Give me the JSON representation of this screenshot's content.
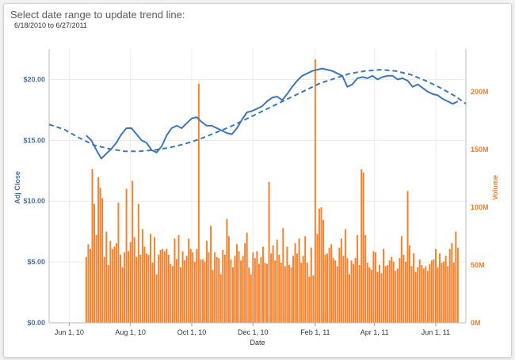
{
  "header": {
    "title": "Select date range to update trend line:",
    "range": "6/18/2010 to 6/27/2011"
  },
  "colors": {
    "price": "#3e76b6",
    "volume": "#f5822f",
    "trend": "#3e76b6",
    "grid": "#ececec"
  },
  "chart_data": {
    "type": "bar",
    "xlabel": "Date",
    "ylabel_left": "Adj Close",
    "ylabel_right": "Volume",
    "x_ticks": [
      {
        "label": "Jun 1, 10",
        "day": 0
      },
      {
        "label": "Aug 1, 10",
        "day": 61
      },
      {
        "label": "Oct 1, 10",
        "day": 122
      },
      {
        "label": "Dec 1, 10",
        "day": 183
      },
      {
        "label": "Feb 1, 11",
        "day": 245
      },
      {
        "label": "Apr 1, 11",
        "day": 304
      },
      {
        "label": "Jun 1, 11",
        "day": 365
      }
    ],
    "xlim": [
      -20,
      395
    ],
    "y_left_ticks": [
      "$0.00",
      "$5.00",
      "$10.00",
      "$15.00",
      "$20.00"
    ],
    "y_left_values": [
      0,
      5,
      10,
      15,
      20
    ],
    "y_left_lim": [
      0,
      22.5
    ],
    "y_right_ticks": [
      "0M",
      "50M",
      "100M",
      "150M",
      "200M"
    ],
    "y_right_values": [
      0,
      50,
      100,
      150,
      200
    ],
    "y_right_lim": [
      0,
      237
    ],
    "price_series": {
      "days": [
        17,
        22,
        27,
        32,
        37,
        42,
        47,
        52,
        57,
        62,
        67,
        72,
        77,
        82,
        87,
        92,
        97,
        102,
        107,
        112,
        117,
        122,
        127,
        132,
        137,
        142,
        147,
        152,
        157,
        162,
        167,
        172,
        177,
        182,
        187,
        192,
        197,
        202,
        207,
        212,
        217,
        222,
        227,
        232,
        237,
        242,
        247,
        252,
        257,
        262,
        267,
        272,
        277,
        282,
        287,
        292,
        297,
        302,
        307,
        312,
        317,
        322,
        327,
        332,
        337,
        342,
        347,
        352,
        357,
        362,
        367,
        372,
        377,
        382,
        387
      ],
      "values": [
        15.4,
        15.0,
        14.2,
        13.5,
        13.9,
        14.3,
        14.8,
        15.5,
        16.0,
        16.0,
        15.5,
        15.0,
        14.8,
        14.2,
        14.0,
        14.5,
        15.4,
        16.0,
        16.2,
        16.0,
        16.4,
        16.8,
        16.9,
        16.5,
        16.2,
        16.2,
        16.0,
        15.8,
        15.6,
        15.5,
        16.0,
        16.7,
        17.3,
        17.4,
        17.6,
        17.8,
        18.2,
        18.5,
        18.6,
        18.3,
        18.8,
        19.4,
        19.9,
        20.3,
        20.5,
        20.7,
        20.8,
        20.9,
        20.8,
        20.7,
        20.5,
        20.3,
        19.4,
        19.6,
        20.1,
        20.2,
        20.1,
        20.3,
        20.0,
        20.2,
        20.3,
        20.3,
        20.0,
        20.1,
        19.9,
        19.4,
        19.6,
        19.3,
        19.0,
        18.8,
        18.7,
        18.4,
        18.2,
        18.0,
        18.2
      ]
    },
    "trend_series": {
      "days": [
        -20,
        -5,
        10,
        25,
        40,
        55,
        70,
        85,
        100,
        115,
        130,
        145,
        160,
        175,
        190,
        205,
        220,
        235,
        250,
        265,
        280,
        295,
        310,
        325,
        340,
        355,
        370,
        385,
        395
      ],
      "values": [
        16.3,
        15.9,
        15.2,
        14.6,
        14.3,
        14.1,
        14.1,
        14.2,
        14.4,
        14.7,
        15.1,
        15.6,
        16.1,
        16.7,
        17.3,
        17.9,
        18.5,
        19.1,
        19.7,
        20.1,
        20.5,
        20.7,
        20.8,
        20.7,
        20.4,
        19.9,
        19.3,
        18.6,
        18.0
      ]
    },
    "volume_series": {
      "days": [
        17,
        19,
        21,
        23,
        25,
        27,
        29,
        31,
        33,
        35,
        37,
        39,
        41,
        43,
        45,
        47,
        49,
        51,
        53,
        55,
        57,
        59,
        61,
        63,
        65,
        67,
        69,
        71,
        73,
        75,
        77,
        79,
        81,
        83,
        85,
        87,
        89,
        91,
        93,
        95,
        97,
        99,
        101,
        103,
        105,
        107,
        109,
        111,
        113,
        115,
        117,
        119,
        121,
        123,
        125,
        127,
        129,
        131,
        133,
        135,
        137,
        139,
        141,
        143,
        145,
        147,
        149,
        151,
        153,
        155,
        157,
        159,
        161,
        163,
        165,
        167,
        169,
        171,
        173,
        175,
        177,
        179,
        181,
        183,
        185,
        187,
        189,
        191,
        193,
        195,
        197,
        199,
        201,
        203,
        205,
        207,
        209,
        211,
        213,
        215,
        217,
        219,
        221,
        223,
        225,
        227,
        229,
        231,
        233,
        235,
        237,
        239,
        241,
        243,
        245,
        247,
        249,
        251,
        253,
        255,
        257,
        259,
        261,
        263,
        265,
        267,
        269,
        271,
        273,
        275,
        277,
        279,
        281,
        283,
        285,
        287,
        289,
        291,
        293,
        295,
        297,
        299,
        301,
        303,
        305,
        307,
        309,
        311,
        313,
        315,
        317,
        319,
        321,
        323,
        325,
        327,
        329,
        331,
        333,
        335,
        337,
        339,
        341,
        343,
        345,
        347,
        349,
        351,
        353,
        355,
        357,
        359,
        361,
        363,
        365,
        367,
        369,
        371,
        373,
        375,
        377,
        379,
        381,
        383,
        385,
        387
      ],
      "values": [
        57,
        68,
        64,
        133,
        103,
        76,
        126,
        117,
        108,
        57,
        79,
        50,
        71,
        64,
        66,
        69,
        104,
        59,
        48,
        61,
        116,
        62,
        70,
        123,
        74,
        57,
        103,
        59,
        81,
        66,
        60,
        59,
        77,
        52,
        74,
        42,
        59,
        63,
        64,
        62,
        64,
        59,
        51,
        49,
        73,
        55,
        76,
        48,
        62,
        54,
        58,
        73,
        64,
        61,
        53,
        64,
        207,
        55,
        55,
        53,
        71,
        61,
        84,
        46,
        61,
        57,
        56,
        42,
        63,
        59,
        90,
        75,
        55,
        48,
        58,
        68,
        62,
        54,
        58,
        69,
        78,
        48,
        42,
        61,
        56,
        62,
        51,
        57,
        66,
        52,
        51,
        122,
        60,
        67,
        54,
        72,
        59,
        52,
        82,
        49,
        66,
        50,
        48,
        58,
        69,
        60,
        73,
        52,
        58,
        75,
        52,
        40,
        65,
        41,
        228,
        77,
        99,
        100,
        89,
        59,
        60,
        65,
        68,
        56,
        54,
        49,
        65,
        73,
        58,
        81,
        56,
        42,
        54,
        51,
        56,
        76,
        50,
        133,
        130,
        76,
        52,
        48,
        46,
        62,
        61,
        44,
        50,
        43,
        64,
        49,
        50,
        54,
        57,
        53,
        45,
        47,
        56,
        75,
        59,
        53,
        114,
        67,
        49,
        60,
        44,
        48,
        55,
        50,
        47,
        49,
        45,
        51,
        54,
        55,
        64,
        48,
        60,
        52,
        53,
        58,
        49,
        64,
        69,
        52,
        79,
        65
      ]
    }
  }
}
